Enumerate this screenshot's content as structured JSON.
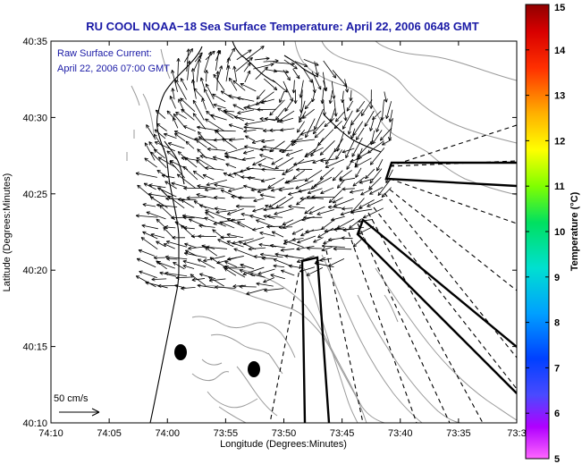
{
  "title": "RU COOL  NOAA−18  Sea Surface Temperature:  April 22, 2006 0648 GMT",
  "annotation": {
    "line1": "Raw Surface Current:",
    "line2": "April 22, 2006 07:00 GMT"
  },
  "axes": {
    "xlabel": "Longitude (Degrees:Minutes)",
    "ylabel": "Latitude (Degrees:Minutes)",
    "xticks": [
      "74:10",
      "74:05",
      "74:00",
      "73:55",
      "73:50",
      "73:45",
      "73:40",
      "73:35",
      "73:3"
    ],
    "yticks": [
      "40:10",
      "40:15",
      "40:20",
      "40:25",
      "40:30",
      "40:35"
    ]
  },
  "scale_arrow": {
    "label": "50 cm/s"
  },
  "colorbar": {
    "label": "Temperature (°C)",
    "ticks": [
      "5",
      "6",
      "7",
      "8",
      "9",
      "10",
      "11",
      "12",
      "13",
      "14",
      "15"
    ]
  },
  "colors": {
    "title": "#1a1aa6",
    "coastline": "#000000",
    "bathymetry": "#9a9a9a",
    "vectors": "#000000"
  }
}
